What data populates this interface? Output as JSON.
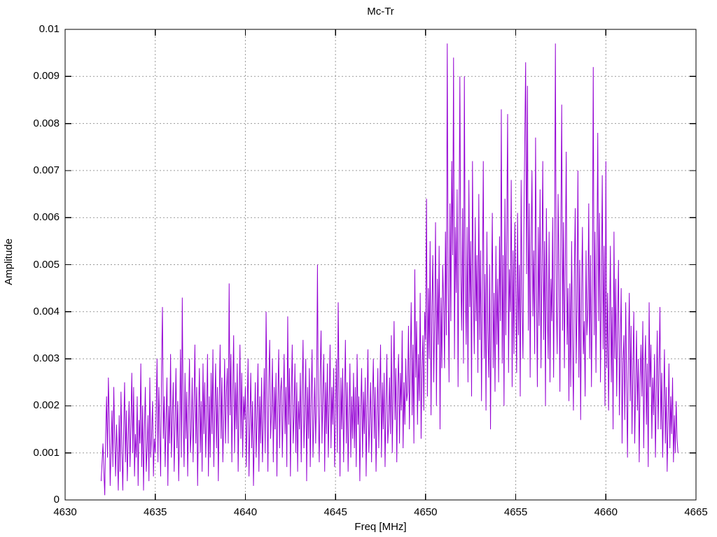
{
  "chart_data": {
    "type": "line",
    "title": "Mc-Tr",
    "xlabel": "Freq [MHz]",
    "ylabel": "Amplitude",
    "xlim": [
      4630,
      4665
    ],
    "ylim": [
      0,
      0.01
    ],
    "grid": true,
    "legend": "none",
    "line_color": "#9400d3",
    "grid_color": "#9a9a9a",
    "axis_color": "#000000",
    "xticks": [
      {
        "v": 4630,
        "label": "4630"
      },
      {
        "v": 4635,
        "label": "4635"
      },
      {
        "v": 4640,
        "label": "4640"
      },
      {
        "v": 4645,
        "label": "4645"
      },
      {
        "v": 4650,
        "label": "4650"
      },
      {
        "v": 4655,
        "label": "4655"
      },
      {
        "v": 4660,
        "label": "4660"
      },
      {
        "v": 4665,
        "label": "4665"
      }
    ],
    "yticks": [
      {
        "v": 0.0,
        "label": "0"
      },
      {
        "v": 0.001,
        "label": "0.001"
      },
      {
        "v": 0.002,
        "label": "0.002"
      },
      {
        "v": 0.003,
        "label": "0.003"
      },
      {
        "v": 0.004,
        "label": "0.004"
      },
      {
        "v": 0.005,
        "label": "0.005"
      },
      {
        "v": 0.006,
        "label": "0.006"
      },
      {
        "v": 0.007,
        "label": "0.007"
      },
      {
        "v": 0.008,
        "label": "0.008"
      },
      {
        "v": 0.009,
        "label": "0.009"
      },
      {
        "v": 0.01,
        "label": "0.01"
      }
    ],
    "series": [
      {
        "name": "Mc-Tr",
        "x_start": 4632.0,
        "x_step": 0.05,
        "amplitude_scale": 0.0001,
        "values": [
          4,
          8,
          12,
          6,
          1,
          14,
          22,
          9,
          26,
          17,
          3,
          11,
          19,
          7,
          24,
          13,
          5,
          16,
          10,
          2,
          18,
          6,
          23,
          11,
          2,
          15,
          25,
          8,
          19,
          4,
          13,
          21,
          7,
          16,
          27,
          10,
          24,
          5,
          14,
          9,
          22,
          3,
          17,
          12,
          29,
          7,
          20,
          2,
          15,
          24,
          6,
          11,
          18,
          4,
          26,
          9,
          14,
          21,
          5,
          13,
          10,
          19,
          30,
          8,
          24,
          15,
          5,
          28,
          41,
          13,
          22,
          7,
          17,
          26,
          3,
          20,
          12,
          31,
          9,
          18,
          25,
          6,
          16,
          28,
          11,
          21,
          4,
          14,
          32,
          9,
          43,
          18,
          7,
          27,
          13,
          23,
          5,
          19,
          30,
          10,
          15,
          26,
          8,
          20,
          33,
          12,
          24,
          3,
          17,
          28,
          10,
          21,
          6,
          29,
          14,
          25,
          9,
          18,
          31,
          5,
          22,
          9,
          27,
          14,
          32,
          7,
          19,
          29,
          11,
          24,
          4,
          21,
          33,
          13,
          26,
          8,
          17,
          30,
          12,
          23,
          28,
          12,
          46,
          18,
          31,
          8,
          23,
          35,
          10,
          25,
          15,
          29,
          6,
          20,
          33,
          13,
          27,
          9,
          22,
          17,
          24,
          7,
          19,
          30,
          5,
          16,
          27,
          11,
          21,
          3,
          14,
          25,
          9,
          18,
          29,
          6,
          22,
          12,
          26,
          8,
          17,
          28,
          10,
          40,
          22,
          6,
          25,
          34,
          13,
          19,
          30,
          8,
          24,
          15,
          27,
          5,
          21,
          32,
          11,
          23,
          26,
          9,
          20,
          31,
          14,
          24,
          7,
          39,
          16,
          28,
          5,
          22,
          33,
          12,
          18,
          29,
          10,
          25,
          6,
          21,
          15,
          27,
          8,
          23,
          34,
          11,
          19,
          30,
          4,
          24,
          13,
          28,
          7,
          21,
          32,
          9,
          17,
          26,
          12,
          22,
          50,
          18,
          8,
          27,
          36,
          12,
          22,
          31,
          6,
          25,
          14,
          29,
          9,
          20,
          33,
          11,
          24,
          16,
          28,
          7,
          19,
          30,
          10,
          42,
          23,
          5,
          26,
          15,
          28,
          8,
          21,
          34,
          12,
          25,
          6,
          18,
          29,
          9,
          22,
          13,
          27,
          11,
          24,
          7,
          31,
          16,
          22,
          4,
          19,
          28,
          9,
          23,
          14,
          26,
          5,
          20,
          32,
          10,
          17,
          25,
          8,
          21,
          30,
          13,
          24,
          6,
          18,
          28,
          11,
          22,
          33,
          9,
          25,
          15,
          27,
          7,
          20,
          31,
          12,
          16,
          26,
          14,
          35,
          10,
          23,
          38,
          17,
          28,
          8,
          24,
          31,
          12,
          27,
          19,
          36,
          11,
          25,
          16,
          30,
          21,
          23,
          37,
          15,
          29,
          42,
          18,
          33,
          12,
          49,
          26,
          38,
          16,
          31,
          21,
          44,
          13,
          28,
          35,
          19,
          40,
          34,
          64,
          22,
          45,
          30,
          55,
          18,
          41,
          52,
          25,
          38,
          59,
          20,
          47,
          33,
          54,
          15,
          43,
          28,
          50,
          42,
          28,
          57,
          35,
          97,
          45,
          25,
          63,
          38,
          72,
          52,
          94,
          30,
          58,
          44,
          66,
          24,
          55,
          90,
          48,
          36,
          62,
          29,
          90,
          47,
          33,
          58,
          25,
          68,
          41,
          55,
          22,
          72,
          45,
          31,
          60,
          38,
          52,
          27,
          65,
          34,
          53,
          21,
          45,
          72,
          30,
          48,
          19,
          57,
          36,
          26,
          50,
          15,
          42,
          61,
          28,
          44,
          23,
          54,
          33,
          47,
          25,
          56,
          38,
          83,
          29,
          52,
          20,
          64,
          35,
          57,
          82,
          27,
          49,
          40,
          68,
          24,
          53,
          31,
          59,
          44,
          27,
          61,
          35,
          50,
          22,
          68,
          42,
          30,
          57,
          76,
          93,
          48,
          88,
          36,
          63,
          26,
          54,
          70,
          39,
          53,
          31,
          77,
          45,
          24,
          58,
          37,
          66,
          28,
          49,
          72,
          34,
          55,
          20,
          62,
          41,
          30,
          57,
          25,
          47,
          38,
          60,
          26,
          52,
          97,
          43,
          31,
          65,
          48,
          23,
          56,
          84,
          36,
          59,
          28,
          50,
          74,
          33,
          45,
          21,
          46,
          24,
          55,
          33,
          19,
          48,
          62,
          29,
          41,
          70,
          26,
          51,
          17,
          44,
          58,
          31,
          38,
          22,
          53,
          35,
          40,
          63,
          30,
          52,
          24,
          45,
          92,
          35,
          57,
          27,
          49,
          78,
          38,
          61,
          25,
          46,
          69,
          32,
          54,
          20,
          72,
          28,
          44,
          19,
          36,
          54,
          25,
          41,
          15,
          57,
          30,
          47,
          22,
          38,
          51,
          18,
          33,
          45,
          12,
          29,
          35,
          17,
          42,
          26,
          9,
          31,
          44,
          21,
          37,
          14,
          28,
          40,
          12,
          24,
          36,
          19,
          30,
          8,
          26,
          33,
          22,
          38,
          11,
          27,
          35,
          16,
          29,
          7,
          42,
          24,
          33,
          13,
          26,
          18,
          31,
          9,
          23,
          36,
          15,
          28,
          41,
          15,
          27,
          9,
          20,
          32,
          12,
          24,
          6,
          17,
          29,
          11,
          22,
          14,
          26,
          8,
          18,
          10,
          21,
          13,
          10
        ]
      }
    ]
  }
}
